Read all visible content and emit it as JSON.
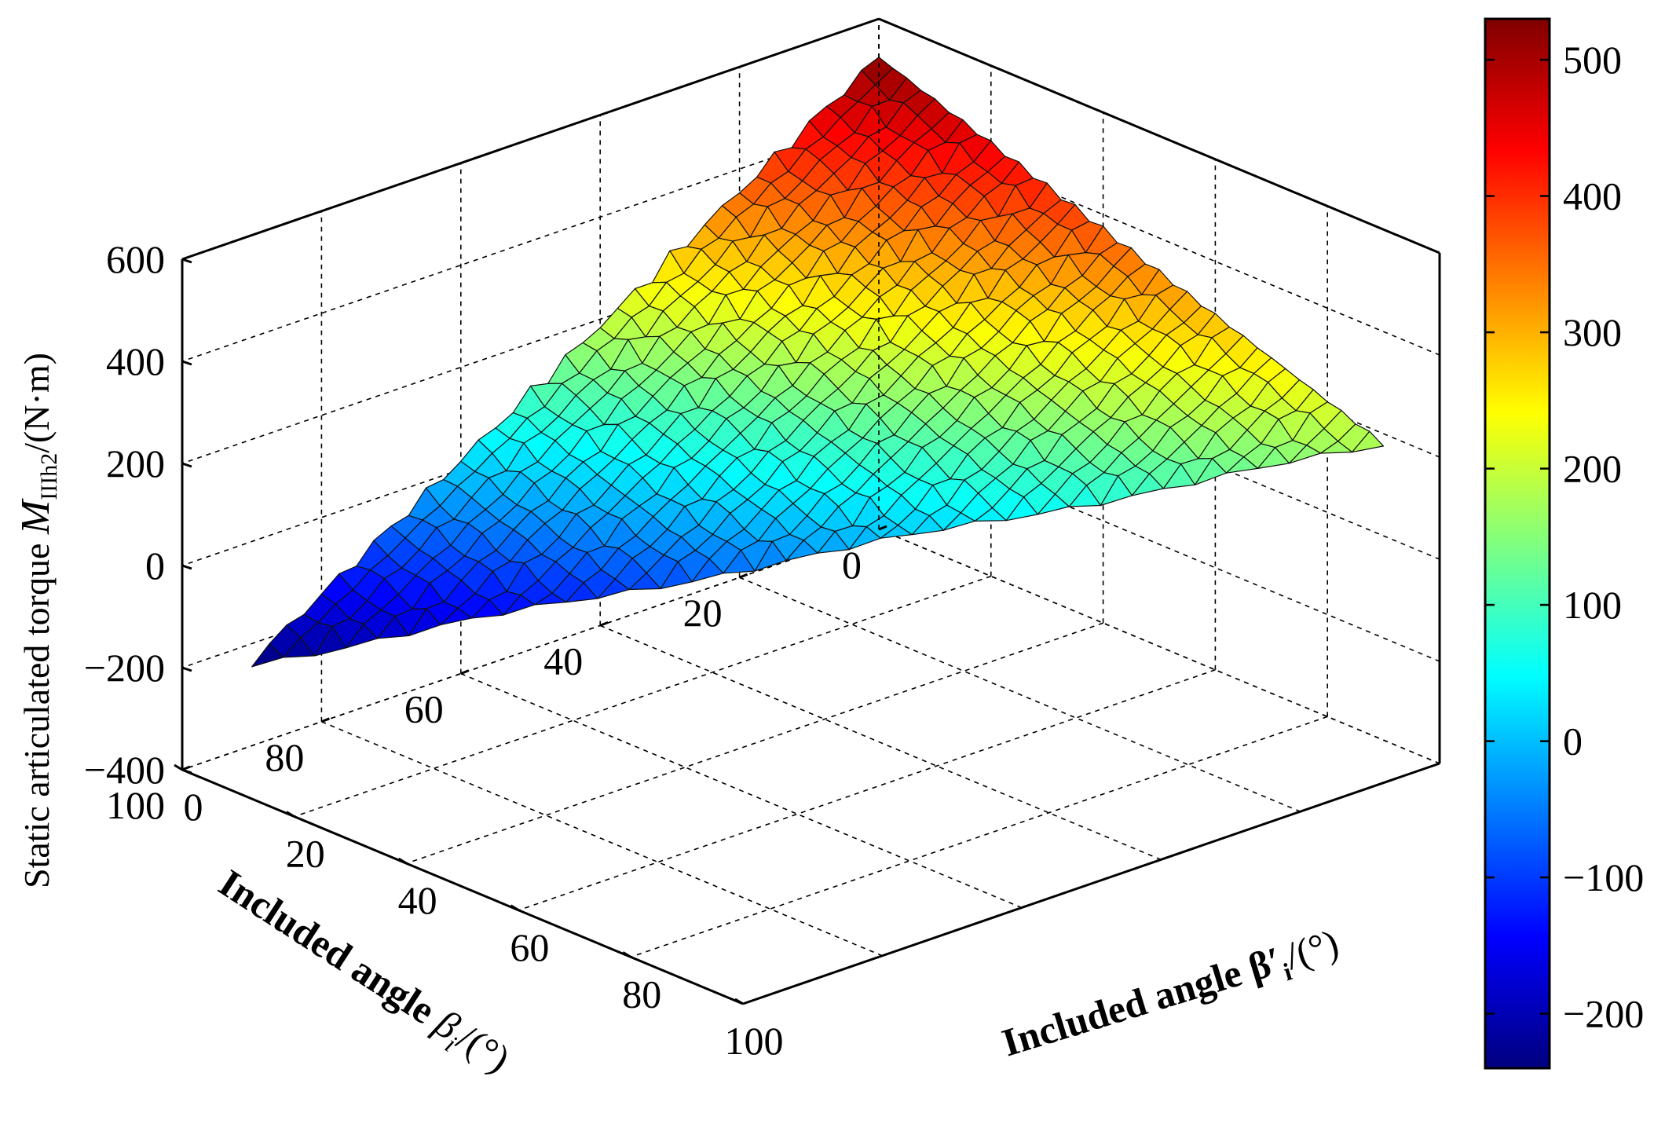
{
  "chart_data": {
    "type": "surface",
    "title": "",
    "zlabel": "Static articulated torque  M_IIIh2/(N·m)",
    "zlabel_parts": {
      "pre": "Static articulated torque  ",
      "sym": "M",
      "sub": "IIIh2",
      "post": "/(N·m)"
    },
    "xlabel": "Included angle  β_i/(°)",
    "xlabel_parts": {
      "pre": "Included angle  ",
      "sym": "β",
      "sub": "i",
      "post": "/(°)"
    },
    "ylabel": "Included angle  β'_i/(°)",
    "ylabel_parts": {
      "pre": "Included angle  ",
      "sym": "β′",
      "sub": "i",
      "post": "/(°)"
    },
    "xlim": [
      0,
      100
    ],
    "ylim": [
      0,
      100
    ],
    "zlim": [
      -400,
      600
    ],
    "x_ticks": [
      "0",
      "20",
      "40",
      "60",
      "80",
      "100"
    ],
    "y_ticks": [
      "0",
      "20",
      "40",
      "60",
      "80",
      "100"
    ],
    "z_ticks": [
      "−400",
      "−200",
      "0",
      "200",
      "400",
      "600"
    ],
    "x_tick_values": [
      0,
      20,
      40,
      60,
      80,
      100
    ],
    "y_tick_values": [
      0,
      20,
      40,
      60,
      80,
      100
    ],
    "z_tick_values": [
      -400,
      -200,
      0,
      200,
      400,
      600
    ],
    "colorbar": {
      "colormap": "jet",
      "limits": [
        -240,
        530
      ],
      "ticks": [
        "−200",
        "−100",
        "0",
        "100",
        "200",
        "300",
        "400",
        "500"
      ],
      "tick_values": [
        -200,
        -100,
        0,
        100,
        200,
        300,
        400,
        500
      ]
    },
    "grid": true,
    "surface": {
      "domain": "triangle β_i + β'_i ≤ 90",
      "corner_values": [
        {
          "beta_i": 0,
          "beta_prime_i": 0,
          "torque": 525
        },
        {
          "beta_i": 90,
          "beta_prime_i": 0,
          "torque": -235
        },
        {
          "beta_i": 0,
          "beta_prime_i": 90,
          "torque": 180
        }
      ],
      "grid_steps": 36
    }
  }
}
